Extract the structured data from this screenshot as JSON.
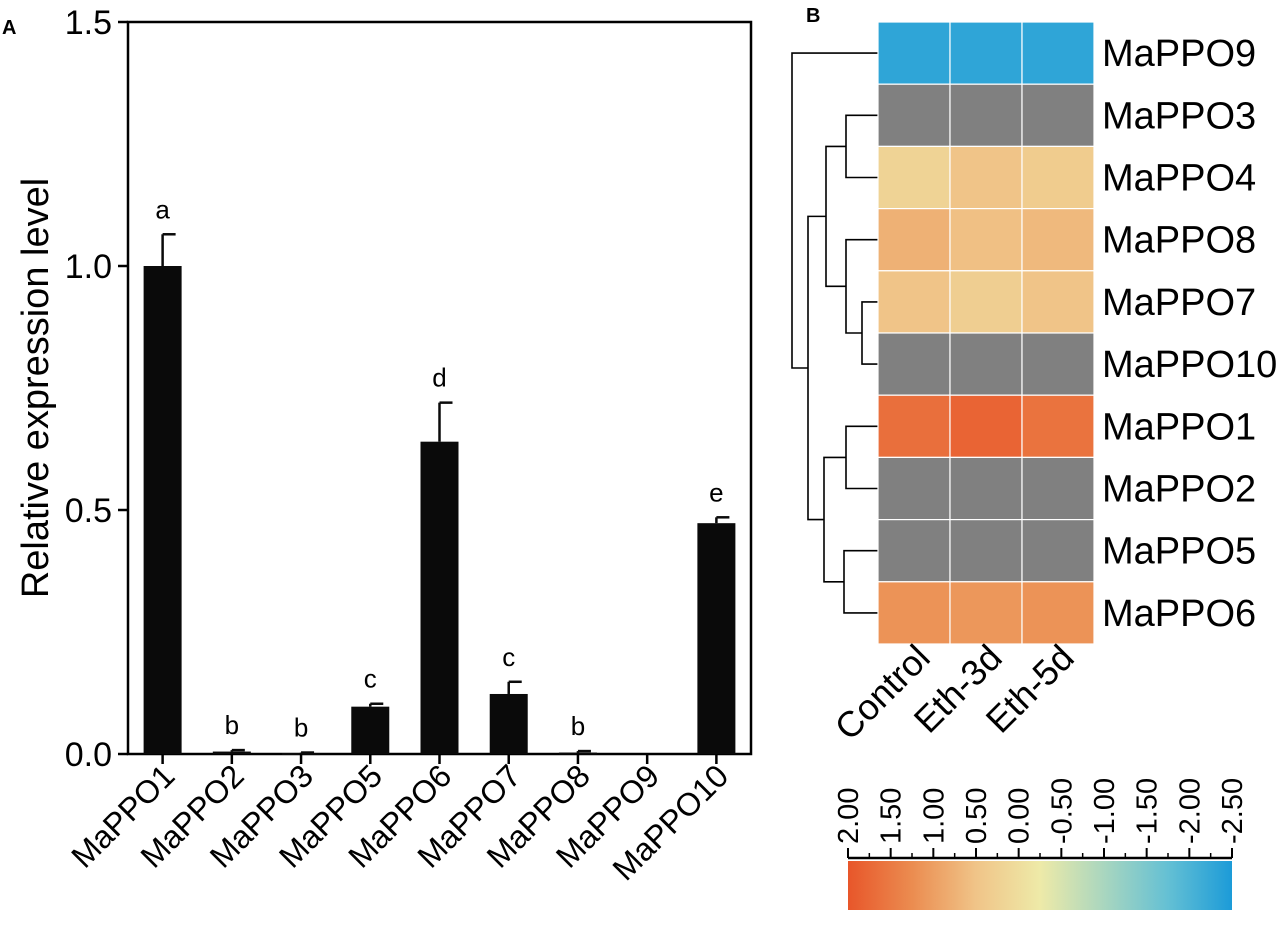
{
  "chart_data": [
    {
      "panel": "A",
      "type": "bar",
      "ylabel": "Relative expression level",
      "ylim": [
        0,
        1.5
      ],
      "yticks": [
        "0.0",
        "0.5",
        "1.0",
        "1.5"
      ],
      "ytick_values": [
        0,
        0.5,
        1.0,
        1.5
      ],
      "categories": [
        "MaPPO1",
        "MaPPO2",
        "MaPPO3",
        "MaPPO5",
        "MaPPO6",
        "MaPPO7",
        "MaPPO8",
        "MaPPO9",
        "MaPPO10"
      ],
      "values": [
        1.0,
        0.005,
        0.002,
        0.097,
        0.64,
        0.123,
        0.003,
        0.0,
        0.473
      ],
      "errors": [
        0.065,
        0.003,
        0.001,
        0.006,
        0.08,
        0.025,
        0.003,
        0.0,
        0.012
      ],
      "significance": [
        "a",
        "b",
        "b",
        "c",
        "d",
        "c",
        "b",
        "",
        "e"
      ],
      "bar_color": "#0a0a0a"
    },
    {
      "panel": "B",
      "type": "heatmap",
      "rows": [
        "MaPPO9",
        "MaPPO3",
        "MaPPO4",
        "MaPPO8",
        "MaPPO7",
        "MaPPO10",
        "MaPPO1",
        "MaPPO2",
        "MaPPO5",
        "MaPPO6"
      ],
      "columns": [
        "Control",
        "Eth-3d",
        "Eth-5d"
      ],
      "values": [
        [
          -2.3,
          -2.3,
          -2.3
        ],
        [
          null,
          null,
          null
        ],
        [
          0.2,
          0.5,
          0.35
        ],
        [
          0.75,
          0.55,
          0.65
        ],
        [
          0.5,
          0.3,
          0.5
        ],
        [
          null,
          null,
          null
        ],
        [
          1.65,
          1.8,
          1.6
        ],
        [
          null,
          null,
          null
        ],
        [
          null,
          null,
          null
        ],
        [
          1.15,
          1.1,
          1.15
        ]
      ],
      "missing_color": "#808080",
      "colorbar": {
        "ticks": [
          "2.00",
          "1.50",
          "1.00",
          "0.50",
          "0.00",
          "-0.50",
          "-1.00",
          "-1.50",
          "-2.00",
          "-2.50"
        ],
        "tick_values": [
          2.0,
          1.5,
          1.0,
          0.5,
          0.0,
          -0.5,
          -1.0,
          -1.5,
          -2.0,
          -2.5
        ],
        "range": [
          2.0,
          -2.5
        ],
        "stops": [
          "#e8562a",
          "#eb8c50",
          "#f0c488",
          "#eeeaa8",
          "#a9d6bf",
          "#64c0d4",
          "#1c9bd8"
        ]
      },
      "dendrogram": "hierarchical clustering of rows"
    }
  ]
}
